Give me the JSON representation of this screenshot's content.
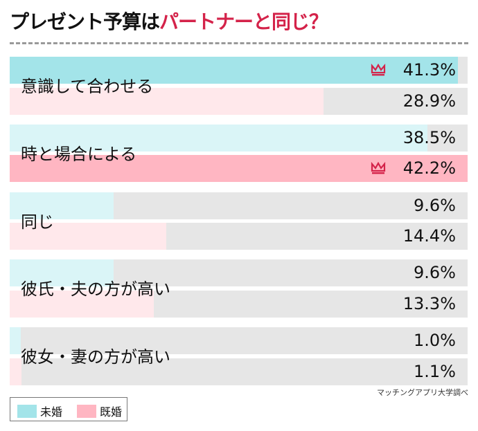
{
  "title": {
    "part1": "プレゼント予算は",
    "part2": "パートナーと同じ？"
  },
  "source": "マッチングアプリ大学調べ",
  "colors": {
    "unmarried": "#a3e4e9",
    "unmarried_light": "#daf5f7",
    "married": "#ffb6c2",
    "married_light": "#ffe8eb",
    "remainder": "#e6e6e6",
    "accent": "#d4234a"
  },
  "chart_data": {
    "type": "bar",
    "orientation": "horizontal",
    "categories": [
      "意識して合わせる",
      "時と場合による",
      "同じ",
      "彼氏・夫の方が高い",
      "彼女・妻の方が高い"
    ],
    "series": [
      {
        "name": "未婚",
        "values": [
          41.3,
          38.5,
          9.6,
          9.6,
          1.0
        ],
        "labels": [
          "41.3%",
          "38.5%",
          "9.6%",
          "9.6%",
          "1.0%"
        ]
      },
      {
        "name": "既婚",
        "values": [
          28.9,
          42.2,
          14.4,
          13.3,
          1.1
        ],
        "labels": [
          "28.9%",
          "42.2%",
          "14.4%",
          "13.3%",
          "1.1%"
        ]
      }
    ],
    "unit": "%",
    "xlim": [
      0,
      42.2
    ],
    "highlight": "max per series marked with crown-icon",
    "legend": "bottom-left",
    "grid": false
  }
}
